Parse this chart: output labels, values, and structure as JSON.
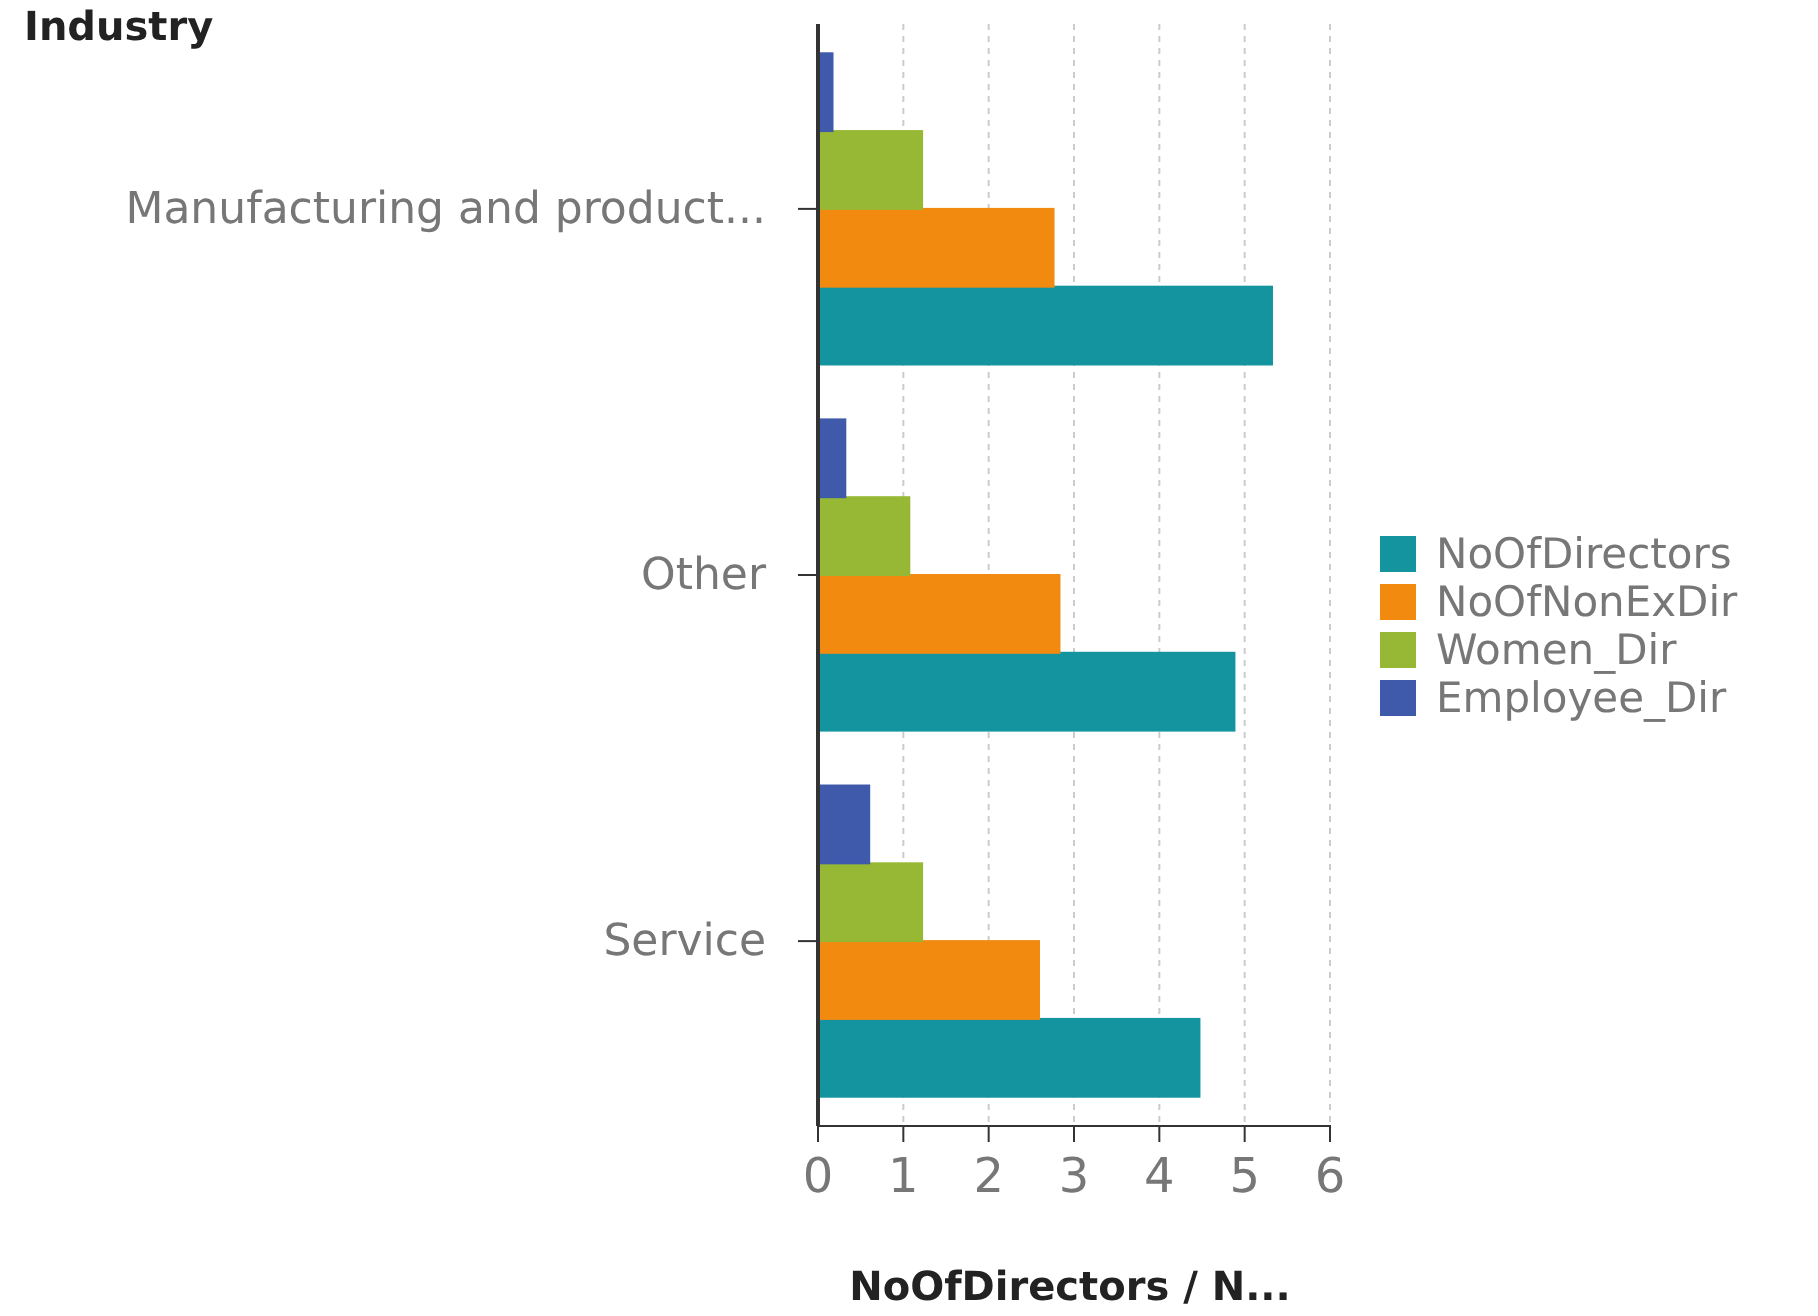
{
  "chart_data": {
    "type": "bar",
    "orientation": "horizontal",
    "ylabel": "Industry",
    "xlabel": "NoOfDirectors / N...",
    "categories": [
      "Manufacturing and product...",
      "Other",
      "Service"
    ],
    "series": [
      {
        "name": "NoOfDirectors",
        "color": "#13949f",
        "values": [
          5.32,
          4.88,
          4.47
        ]
      },
      {
        "name": "NoOfNonExDir",
        "color": "#f28a10",
        "values": [
          2.76,
          2.83,
          2.59
        ]
      },
      {
        "name": "Women_Dir",
        "color": "#97b834",
        "values": [
          1.22,
          1.07,
          1.22
        ]
      },
      {
        "name": "Employee_Dir",
        "color": "#3f5aab",
        "values": [
          0.17,
          0.32,
          0.6
        ]
      }
    ],
    "xlim": [
      0,
      6
    ],
    "xticks": [
      0,
      1,
      2,
      3,
      4,
      5,
      6
    ],
    "grid": "x",
    "legend": "right"
  }
}
